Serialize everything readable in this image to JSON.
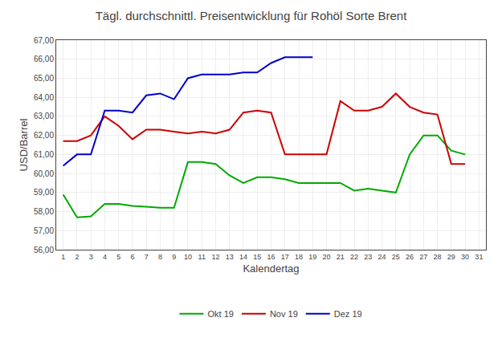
{
  "chart_data": {
    "type": "line",
    "title": "Tägl. durchschnittl. Preisentwicklung für Rohöl Sorte Brent",
    "xlabel": "Kalendertag",
    "ylabel": "USD/Barrel",
    "x": [
      1,
      2,
      3,
      4,
      5,
      6,
      7,
      8,
      9,
      10,
      11,
      12,
      13,
      14,
      15,
      16,
      17,
      18,
      19,
      20,
      21,
      22,
      23,
      24,
      25,
      26,
      27,
      28,
      29,
      30,
      31
    ],
    "series": [
      {
        "name": "Okt 19",
        "color": "#00aa00",
        "values": [
          58.9,
          57.7,
          57.75,
          58.4,
          58.4,
          58.3,
          58.25,
          58.2,
          58.2,
          60.6,
          60.6,
          60.5,
          59.9,
          59.5,
          59.8,
          59.8,
          59.7,
          59.5,
          59.5,
          59.5,
          59.5,
          59.1,
          59.2,
          59.1,
          59.0,
          61.0,
          62.0,
          62.0,
          61.2,
          61.0,
          null
        ]
      },
      {
        "name": "Nov 19",
        "color": "#cc0000",
        "values": [
          61.7,
          61.7,
          62.0,
          63.0,
          62.5,
          61.8,
          62.3,
          62.3,
          62.2,
          62.1,
          62.2,
          62.1,
          62.3,
          63.2,
          63.3,
          63.2,
          61.0,
          61.0,
          61.0,
          61.0,
          63.8,
          63.3,
          63.3,
          63.5,
          64.2,
          63.5,
          63.2,
          63.1,
          60.5,
          60.5,
          null
        ]
      },
      {
        "name": "Dez 19",
        "color": "#0000cc",
        "values": [
          60.4,
          61.0,
          61.0,
          63.3,
          63.3,
          63.2,
          64.1,
          64.2,
          63.9,
          65.0,
          65.2,
          65.2,
          65.2,
          65.3,
          65.3,
          65.8,
          66.1,
          66.1,
          66.1,
          null,
          null,
          null,
          null,
          null,
          null,
          null,
          null,
          null,
          null,
          null,
          null
        ]
      }
    ],
    "xlim": [
      0.5,
      31.5
    ],
    "xticks": [
      1,
      2,
      3,
      4,
      5,
      6,
      7,
      8,
      9,
      10,
      11,
      12,
      13,
      14,
      15,
      16,
      17,
      18,
      19,
      20,
      21,
      22,
      23,
      24,
      25,
      26,
      27,
      28,
      29,
      30,
      31
    ],
    "ylim": [
      56.0,
      67.0
    ],
    "yticks": [
      {
        "value": 56.0,
        "label": "56,00"
      },
      {
        "value": 57.0,
        "label": "57,00"
      },
      {
        "value": 58.0,
        "label": "58,00"
      },
      {
        "value": 59.0,
        "label": "59,00"
      },
      {
        "value": 60.0,
        "label": "60,00"
      },
      {
        "value": 61.0,
        "label": "61,00"
      },
      {
        "value": 62.0,
        "label": "62,00"
      },
      {
        "value": 63.0,
        "label": "63,00"
      },
      {
        "value": 64.0,
        "label": "64,00"
      },
      {
        "value": 65.0,
        "label": "65,00"
      },
      {
        "value": 66.0,
        "label": "66,00"
      },
      {
        "value": 67.0,
        "label": "67,00"
      }
    ],
    "grid": true,
    "legend": "bottom"
  }
}
